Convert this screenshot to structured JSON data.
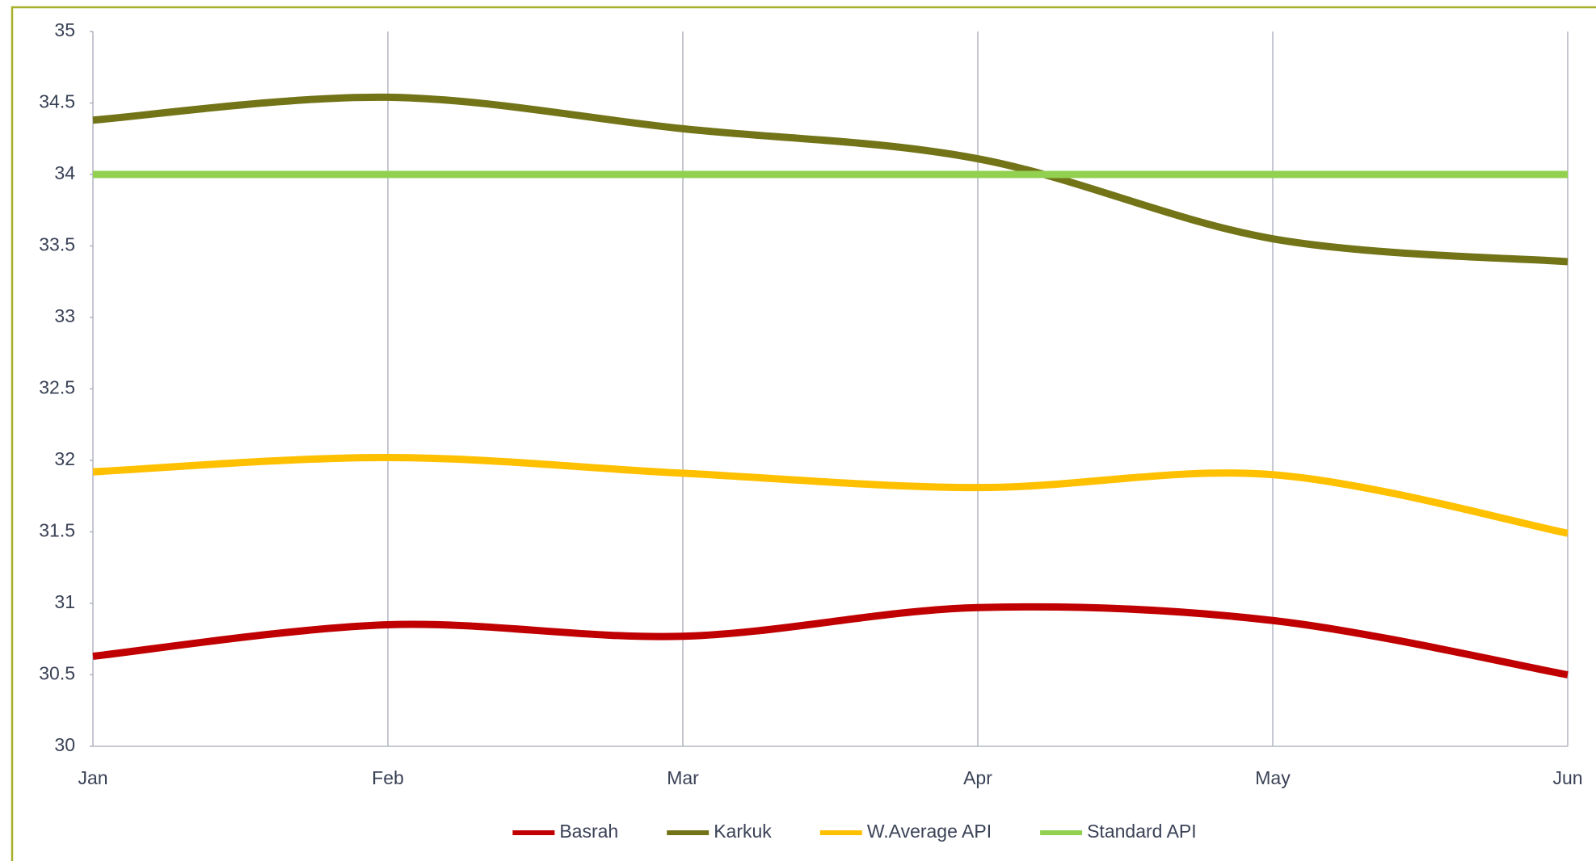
{
  "chart_data": {
    "type": "line",
    "categories": [
      "Jan",
      "Feb",
      "Mar",
      "Apr",
      "May",
      "Jun"
    ],
    "series": [
      {
        "name": "Basrah",
        "color": "#c00000",
        "values": [
          30.63,
          30.85,
          30.77,
          30.97,
          30.88,
          30.5
        ]
      },
      {
        "name": "Karkuk",
        "color": "#737318",
        "values": [
          34.38,
          34.54,
          34.32,
          34.11,
          33.55,
          33.39
        ]
      },
      {
        "name": "W.Average API",
        "color": "#ffc000",
        "values": [
          31.92,
          32.02,
          31.91,
          31.81,
          31.9,
          31.49
        ]
      },
      {
        "name": "Standard API",
        "color": "#92d050",
        "values": [
          34,
          34,
          34,
          34,
          34,
          34
        ]
      }
    ],
    "ylim": [
      30,
      35
    ],
    "yticks": [
      30,
      30.5,
      31,
      31.5,
      32,
      32.5,
      33,
      33.5,
      34,
      34.5,
      35
    ],
    "xgrid": true,
    "smooth": true,
    "legend": "bottom"
  }
}
